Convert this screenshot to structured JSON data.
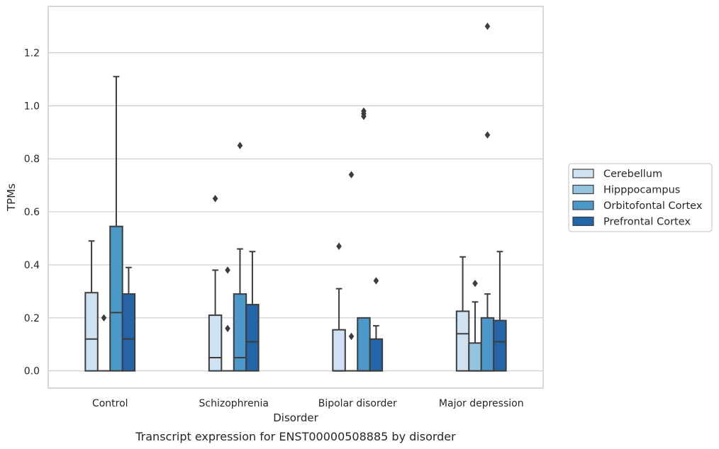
{
  "caption": "Transcript expression for ENST00000508885 by disorder",
  "chart_data": {
    "type": "boxplot",
    "xlabel": "Disorder",
    "ylabel": "TPMs",
    "ylim": [
      -0.065,
      1.375
    ],
    "yticks": [
      "0.0",
      "0.2",
      "0.4",
      "0.6",
      "0.8",
      "1.0",
      "1.2"
    ],
    "ytick_values": [
      0.0,
      0.2,
      0.4,
      0.6,
      0.8,
      1.0,
      1.2
    ],
    "grid": "horizontal",
    "legend_position": "right",
    "categories": [
      "Control",
      "Schizophrenia",
      "Bipolar disorder",
      "Major depression"
    ],
    "series": [
      {
        "name": "Cerebellum",
        "color": "#d0e1f2",
        "boxes": [
          {
            "whislo": 0.0,
            "q1": 0.0,
            "med": 0.12,
            "q3": 0.295,
            "whishi": 0.49,
            "fliers": []
          },
          {
            "whislo": 0.0,
            "q1": 0.0,
            "med": 0.05,
            "q3": 0.21,
            "whishi": 0.38,
            "fliers": [
              0.65
            ]
          },
          {
            "whislo": 0.0,
            "q1": 0.0,
            "med": 0.0,
            "q3": 0.155,
            "whishi": 0.31,
            "fliers": [
              0.47
            ]
          },
          {
            "whislo": 0.0,
            "q1": 0.0,
            "med": 0.14,
            "q3": 0.225,
            "whishi": 0.43,
            "fliers": []
          }
        ]
      },
      {
        "name": "Hipppocampus",
        "color": "#94c4df",
        "boxes": [
          {
            "whislo": 0.0,
            "q1": 0.0,
            "med": 0.0,
            "q3": 0.0,
            "whishi": 0.0,
            "fliers": [
              0.2
            ]
          },
          {
            "whislo": 0.0,
            "q1": 0.0,
            "med": 0.0,
            "q3": 0.0,
            "whishi": 0.0,
            "fliers": [
              0.16,
              0.38
            ]
          },
          {
            "whislo": 0.0,
            "q1": 0.0,
            "med": 0.0,
            "q3": 0.0,
            "whishi": 0.0,
            "fliers": [
              0.13,
              0.74
            ]
          },
          {
            "whislo": 0.0,
            "q1": 0.0,
            "med": 0.0,
            "q3": 0.105,
            "whishi": 0.26,
            "fliers": [
              0.33
            ]
          }
        ]
      },
      {
        "name": "Orbitofontal Cortex",
        "color": "#4b98c9",
        "boxes": [
          {
            "whislo": 0.0,
            "q1": 0.0,
            "med": 0.22,
            "q3": 0.545,
            "whishi": 1.11,
            "fliers": []
          },
          {
            "whislo": 0.0,
            "q1": 0.0,
            "med": 0.05,
            "q3": 0.29,
            "whishi": 0.46,
            "fliers": [
              0.85
            ]
          },
          {
            "whislo": 0.0,
            "q1": 0.0,
            "med": 0.0,
            "q3": 0.2,
            "whishi": 0.2,
            "fliers": [
              0.96,
              0.97,
              0.98
            ]
          },
          {
            "whislo": 0.0,
            "q1": 0.0,
            "med": 0.0,
            "q3": 0.2,
            "whishi": 0.29,
            "fliers": [
              0.89,
              1.3
            ]
          }
        ]
      },
      {
        "name": "Prefrontal Cortex",
        "color": "#2464a8",
        "boxes": [
          {
            "whislo": 0.0,
            "q1": 0.0,
            "med": 0.12,
            "q3": 0.29,
            "whishi": 0.39,
            "fliers": []
          },
          {
            "whislo": 0.0,
            "q1": 0.0,
            "med": 0.11,
            "q3": 0.25,
            "whishi": 0.45,
            "fliers": []
          },
          {
            "whislo": 0.0,
            "q1": 0.0,
            "med": 0.0,
            "q3": 0.12,
            "whishi": 0.17,
            "fliers": [
              0.34
            ]
          },
          {
            "whislo": 0.0,
            "q1": 0.0,
            "med": 0.11,
            "q3": 0.19,
            "whishi": 0.45,
            "fliers": []
          }
        ]
      }
    ]
  }
}
